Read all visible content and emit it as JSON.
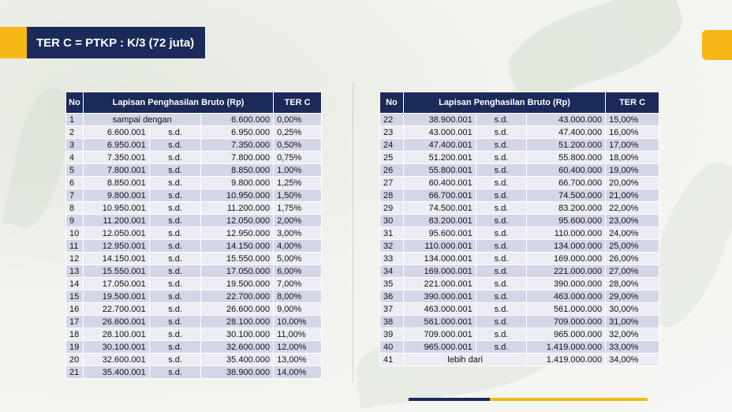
{
  "title": "TER C =  PTKP : K/3 (72 juta)",
  "colors": {
    "navy": "#1c2a5a",
    "yellow": "#f5b817",
    "row_dark": "#d4d6e8",
    "row_light": "#ebecf4"
  },
  "headers": {
    "no": "No",
    "bracket": "Lapisan Penghasilan Bruto (Rp)",
    "rate": "TER C"
  },
  "left_rows": [
    {
      "no": "1",
      "from": "sampai dengan",
      "sep": "",
      "to": "6.600.000",
      "rate": "0,00%"
    },
    {
      "no": "2",
      "from": "6.600.001",
      "sep": "s.d.",
      "to": "6.950.000",
      "rate": "0,25%"
    },
    {
      "no": "3",
      "from": "6.950.001",
      "sep": "s.d.",
      "to": "7.350.000",
      "rate": "0,50%"
    },
    {
      "no": "4",
      "from": "7.350.001",
      "sep": "s.d.",
      "to": "7.800.000",
      "rate": "0,75%"
    },
    {
      "no": "5",
      "from": "7.800.001",
      "sep": "s.d.",
      "to": "8.850.000",
      "rate": "1,00%"
    },
    {
      "no": "6",
      "from": "8.850.001",
      "sep": "s.d.",
      "to": "9.800.000",
      "rate": "1,25%"
    },
    {
      "no": "7",
      "from": "9.800.001",
      "sep": "s.d.",
      "to": "10.950.000",
      "rate": "1,50%"
    },
    {
      "no": "8",
      "from": "10.950.001",
      "sep": "s.d.",
      "to": "11.200.000",
      "rate": "1,75%"
    },
    {
      "no": "9",
      "from": "11.200.001",
      "sep": "s.d.",
      "to": "12.050.000",
      "rate": "2,00%"
    },
    {
      "no": "10",
      "from": "12.050.001",
      "sep": "s.d.",
      "to": "12.950.000",
      "rate": "3,00%"
    },
    {
      "no": "11",
      "from": "12.950.001",
      "sep": "s.d.",
      "to": "14.150.000",
      "rate": "4,00%"
    },
    {
      "no": "12",
      "from": "14.150.001",
      "sep": "s.d.",
      "to": "15.550.000",
      "rate": "5,00%"
    },
    {
      "no": "13",
      "from": "15.550.001",
      "sep": "s.d.",
      "to": "17.050.000",
      "rate": "6,00%"
    },
    {
      "no": "14",
      "from": "17.050.001",
      "sep": "s.d.",
      "to": "19.500.000",
      "rate": "7,00%"
    },
    {
      "no": "15",
      "from": "19.500.001",
      "sep": "s.d.",
      "to": "22.700.000",
      "rate": "8,00%"
    },
    {
      "no": "16",
      "from": "22.700.001",
      "sep": "s.d.",
      "to": "26.600.000",
      "rate": "9,00%"
    },
    {
      "no": "17",
      "from": "26.600.001",
      "sep": "s.d.",
      "to": "28.100.000",
      "rate": "10,00%"
    },
    {
      "no": "18",
      "from": "28.100.001",
      "sep": "s.d.",
      "to": "30.100.000",
      "rate": "11,00%"
    },
    {
      "no": "19",
      "from": "30.100.001",
      "sep": "s.d.",
      "to": "32.600.000",
      "rate": "12,00%"
    },
    {
      "no": "20",
      "from": "32.600.001",
      "sep": "s.d.",
      "to": "35.400.000",
      "rate": "13,00%"
    },
    {
      "no": "21",
      "from": "35.400.001",
      "sep": "s.d.",
      "to": "38.900.000",
      "rate": "14,00%"
    }
  ],
  "right_rows": [
    {
      "no": "22",
      "from": "38.900.001",
      "sep": "s.d.",
      "to": "43.000.000",
      "rate": "15,00%"
    },
    {
      "no": "23",
      "from": "43.000.001",
      "sep": "s.d.",
      "to": "47.400.000",
      "rate": "16,00%"
    },
    {
      "no": "24",
      "from": "47.400.001",
      "sep": "s.d.",
      "to": "51.200.000",
      "rate": "17,00%"
    },
    {
      "no": "25",
      "from": "51.200.001",
      "sep": "s.d.",
      "to": "55.800.000",
      "rate": "18,00%"
    },
    {
      "no": "26",
      "from": "55.800.001",
      "sep": "s.d.",
      "to": "60.400.000",
      "rate": "19,00%"
    },
    {
      "no": "27",
      "from": "60.400.001",
      "sep": "s.d.",
      "to": "66.700.000",
      "rate": "20,00%"
    },
    {
      "no": "28",
      "from": "66.700.001",
      "sep": "s.d.",
      "to": "74.500.000",
      "rate": "21,00%"
    },
    {
      "no": "29",
      "from": "74.500.001",
      "sep": "s.d.",
      "to": "83.200.000",
      "rate": "22,00%"
    },
    {
      "no": "30",
      "from": "83.200.001",
      "sep": "s.d.",
      "to": "95.600.000",
      "rate": "23,00%"
    },
    {
      "no": "31",
      "from": "95.600.001",
      "sep": "s.d.",
      "to": "110.000.000",
      "rate": "24,00%"
    },
    {
      "no": "32",
      "from": "110.000.001",
      "sep": "s.d.",
      "to": "134.000.000",
      "rate": "25,00%"
    },
    {
      "no": "33",
      "from": "134.000.001",
      "sep": "s.d.",
      "to": "169.000.000",
      "rate": "26,00%"
    },
    {
      "no": "34",
      "from": "169.000.001",
      "sep": "s.d.",
      "to": "221.000.000",
      "rate": "27,00%"
    },
    {
      "no": "35",
      "from": "221.000.001",
      "sep": "s.d.",
      "to": "390.000.000",
      "rate": "28,00%"
    },
    {
      "no": "36",
      "from": "390.000.001",
      "sep": "s.d.",
      "to": "463.000.000",
      "rate": "29,00%"
    },
    {
      "no": "37",
      "from": "463.000.001",
      "sep": "s.d.",
      "to": "561.000.000",
      "rate": "30,00%"
    },
    {
      "no": "38",
      "from": "561.000.001",
      "sep": "s.d.",
      "to": "709.000.000",
      "rate": "31,00%"
    },
    {
      "no": "39",
      "from": "709.000.001",
      "sep": "s.d.",
      "to": "965.000.000",
      "rate": "32,00%"
    },
    {
      "no": "40",
      "from": "965.000.001",
      "sep": "s.d.",
      "to": "1.419.000.000",
      "rate": "33,00%"
    },
    {
      "no": "41",
      "from": "lebih dari",
      "sep": "",
      "to": "1.419.000.000",
      "rate": "34,00%"
    }
  ]
}
